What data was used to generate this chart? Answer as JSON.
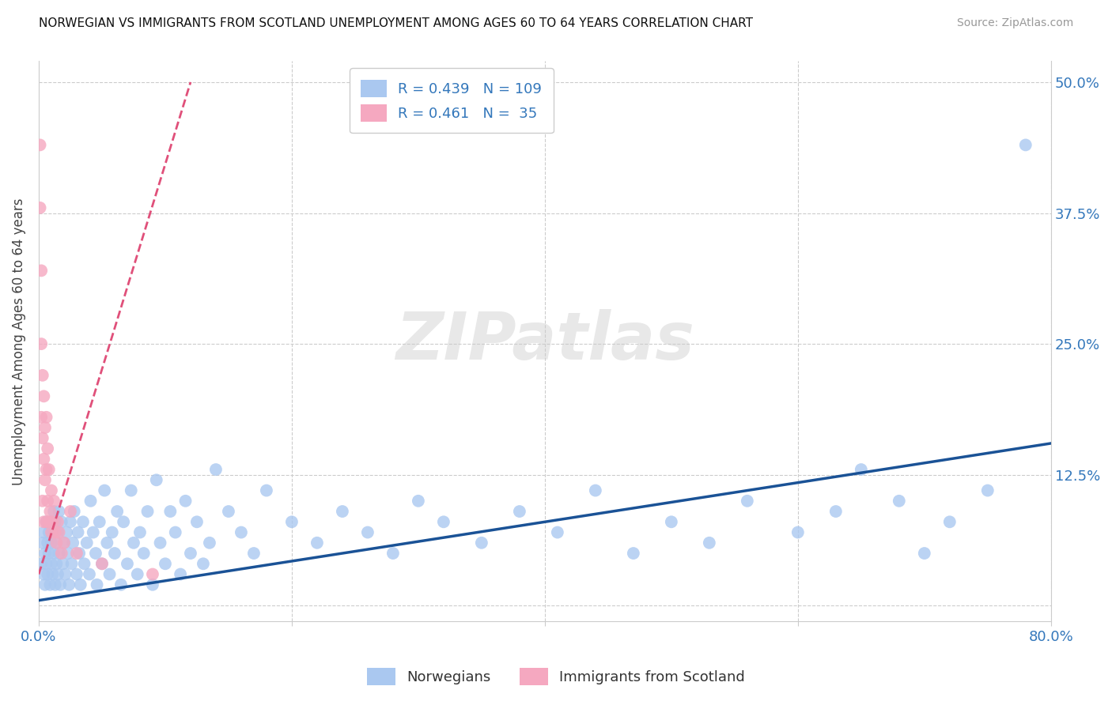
{
  "title": "NORWEGIAN VS IMMIGRANTS FROM SCOTLAND UNEMPLOYMENT AMONG AGES 60 TO 64 YEARS CORRELATION CHART",
  "source": "Source: ZipAtlas.com",
  "ylabel": "Unemployment Among Ages 60 to 64 years",
  "xlim": [
    0.0,
    0.8
  ],
  "ylim": [
    -0.015,
    0.52
  ],
  "xtick_positions": [
    0.0,
    0.2,
    0.4,
    0.6,
    0.8
  ],
  "xticklabels": [
    "0.0%",
    "",
    "",
    "",
    "80.0%"
  ],
  "ytick_positions": [
    0.0,
    0.125,
    0.25,
    0.375,
    0.5
  ],
  "yticklabels": [
    "",
    "12.5%",
    "25.0%",
    "37.5%",
    "50.0%"
  ],
  "norwegian_R": 0.439,
  "norwegian_N": 109,
  "scotland_R": 0.461,
  "scotland_N": 35,
  "blue_color": "#aac8f0",
  "blue_line_color": "#1a5296",
  "pink_color": "#f5a8c0",
  "pink_line_color": "#e0507a",
  "watermark_text": "ZIPatlas",
  "nor_trend_x0": 0.0,
  "nor_trend_y0": 0.005,
  "nor_trend_x1": 0.8,
  "nor_trend_y1": 0.155,
  "sco_trend_x0": 0.0,
  "sco_trend_y0": 0.03,
  "sco_trend_x1": 0.12,
  "sco_trend_y1": 0.5,
  "norwegian_x": [
    0.002,
    0.003,
    0.004,
    0.004,
    0.005,
    0.005,
    0.006,
    0.006,
    0.007,
    0.007,
    0.008,
    0.008,
    0.009,
    0.009,
    0.01,
    0.01,
    0.011,
    0.011,
    0.012,
    0.012,
    0.013,
    0.013,
    0.014,
    0.014,
    0.015,
    0.015,
    0.016,
    0.016,
    0.017,
    0.018,
    0.019,
    0.02,
    0.021,
    0.022,
    0.023,
    0.024,
    0.025,
    0.026,
    0.027,
    0.028,
    0.03,
    0.031,
    0.032,
    0.033,
    0.035,
    0.036,
    0.038,
    0.04,
    0.041,
    0.043,
    0.045,
    0.046,
    0.048,
    0.05,
    0.052,
    0.054,
    0.056,
    0.058,
    0.06,
    0.062,
    0.065,
    0.067,
    0.07,
    0.073,
    0.075,
    0.078,
    0.08,
    0.083,
    0.086,
    0.09,
    0.093,
    0.096,
    0.1,
    0.104,
    0.108,
    0.112,
    0.116,
    0.12,
    0.125,
    0.13,
    0.135,
    0.14,
    0.15,
    0.16,
    0.17,
    0.18,
    0.2,
    0.22,
    0.24,
    0.26,
    0.28,
    0.3,
    0.32,
    0.35,
    0.38,
    0.41,
    0.44,
    0.47,
    0.5,
    0.53,
    0.56,
    0.6,
    0.63,
    0.65,
    0.68,
    0.7,
    0.72,
    0.75,
    0.78
  ],
  "norwegian_y": [
    0.04,
    0.06,
    0.03,
    0.07,
    0.05,
    0.02,
    0.08,
    0.04,
    0.06,
    0.03,
    0.07,
    0.05,
    0.02,
    0.08,
    0.04,
    0.06,
    0.03,
    0.07,
    0.05,
    0.09,
    0.02,
    0.08,
    0.04,
    0.06,
    0.03,
    0.07,
    0.05,
    0.09,
    0.02,
    0.08,
    0.04,
    0.06,
    0.03,
    0.07,
    0.05,
    0.02,
    0.08,
    0.04,
    0.06,
    0.09,
    0.03,
    0.07,
    0.05,
    0.02,
    0.08,
    0.04,
    0.06,
    0.03,
    0.1,
    0.07,
    0.05,
    0.02,
    0.08,
    0.04,
    0.11,
    0.06,
    0.03,
    0.07,
    0.05,
    0.09,
    0.02,
    0.08,
    0.04,
    0.11,
    0.06,
    0.03,
    0.07,
    0.05,
    0.09,
    0.02,
    0.12,
    0.06,
    0.04,
    0.09,
    0.07,
    0.03,
    0.1,
    0.05,
    0.08,
    0.04,
    0.06,
    0.13,
    0.09,
    0.07,
    0.05,
    0.11,
    0.08,
    0.06,
    0.09,
    0.07,
    0.05,
    0.1,
    0.08,
    0.06,
    0.09,
    0.07,
    0.11,
    0.05,
    0.08,
    0.06,
    0.1,
    0.07,
    0.09,
    0.13,
    0.1,
    0.05,
    0.08,
    0.11,
    0.44
  ],
  "scotland_x": [
    0.001,
    0.001,
    0.002,
    0.002,
    0.002,
    0.003,
    0.003,
    0.003,
    0.004,
    0.004,
    0.004,
    0.005,
    0.005,
    0.006,
    0.006,
    0.006,
    0.007,
    0.007,
    0.008,
    0.008,
    0.009,
    0.01,
    0.01,
    0.011,
    0.012,
    0.013,
    0.014,
    0.015,
    0.016,
    0.018,
    0.02,
    0.025,
    0.03,
    0.05,
    0.09
  ],
  "scotland_y": [
    0.44,
    0.38,
    0.32,
    0.25,
    0.18,
    0.22,
    0.16,
    0.1,
    0.2,
    0.14,
    0.08,
    0.17,
    0.12,
    0.18,
    0.13,
    0.08,
    0.15,
    0.1,
    0.13,
    0.08,
    0.09,
    0.11,
    0.07,
    0.08,
    0.1,
    0.07,
    0.06,
    0.08,
    0.07,
    0.05,
    0.06,
    0.09,
    0.05,
    0.04,
    0.03
  ]
}
